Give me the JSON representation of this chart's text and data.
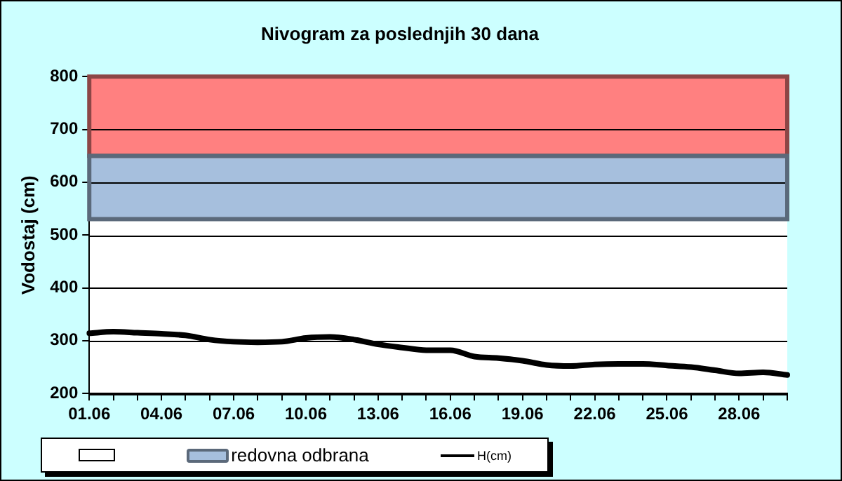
{
  "chart_data": {
    "type": "line",
    "title": "Nivogram za poslednjih 30 dana",
    "ylabel": "Vodostaj (cm)",
    "categories": [
      "01.06",
      null,
      null,
      "04.06",
      null,
      null,
      "07.06",
      null,
      null,
      "10.06",
      null,
      null,
      "13.06",
      null,
      null,
      "16.06",
      null,
      null,
      "19.06",
      null,
      null,
      "22.06",
      null,
      null,
      "25.06",
      null,
      null,
      "28.06",
      null,
      null
    ],
    "series": [
      {
        "name": "H(cm)",
        "color": "#000000",
        "values": [
          314,
          317,
          315,
          313,
          310,
          302,
          298,
          297,
          298,
          305,
          307,
          302,
          293,
          287,
          282,
          282,
          270,
          267,
          262,
          254,
          252,
          255,
          256,
          256,
          253,
          250,
          244,
          238,
          240,
          235
        ]
      }
    ],
    "ylim": [
      200,
      800
    ],
    "yticks": [
      200,
      300,
      400,
      500,
      600,
      700,
      800
    ],
    "grid": "y",
    "legend": "bottom",
    "marker": "none",
    "line_style": "solid",
    "bands": [
      {
        "axis": "y",
        "from": 650,
        "to": 800,
        "color": "#ff8080"
      },
      {
        "axis": "y",
        "from": 530,
        "to": 650,
        "label": "redovna odbrana",
        "color": "#a6bfdd"
      }
    ]
  }
}
